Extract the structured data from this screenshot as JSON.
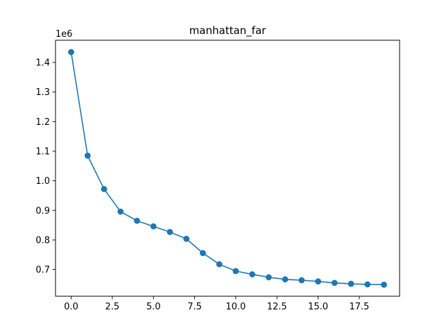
{
  "chart_data": {
    "type": "line",
    "title": "manhattan_far",
    "xlabel": "",
    "ylabel": "",
    "y_offset_label": "1e6",
    "x": [
      0,
      1,
      2,
      3,
      4,
      5,
      6,
      7,
      8,
      9,
      10,
      11,
      12,
      13,
      14,
      15,
      16,
      17,
      18,
      19
    ],
    "series": [
      {
        "values": [
          1435000,
          1085000,
          972000,
          896000,
          865000,
          846000,
          827000,
          804000,
          756000,
          718000,
          695000,
          684000,
          674000,
          667000,
          664000,
          660000,
          655000,
          652000,
          650000,
          649000
        ],
        "color": "#1f77b4",
        "marker": "circle"
      }
    ],
    "xlim": [
      -0.95,
      19.95
    ],
    "ylim": [
      610000.0,
      1475000.0
    ],
    "x_ticks": [
      0,
      2.5,
      5.0,
      7.5,
      10.0,
      12.5,
      15.0,
      17.5
    ],
    "x_tick_labels": [
      "0.0",
      "2.5",
      "5.0",
      "7.5",
      "10.0",
      "12.5",
      "15.0",
      "17.5"
    ],
    "y_ticks": [
      0.7,
      0.8,
      0.9,
      1.0,
      1.1,
      1.2,
      1.3,
      1.4
    ],
    "y_tick_labels": [
      "0.7",
      "0.8",
      "0.9",
      "1.0",
      "1.1",
      "1.2",
      "1.3",
      "1.4"
    ],
    "grid": false,
    "legend": "none"
  }
}
